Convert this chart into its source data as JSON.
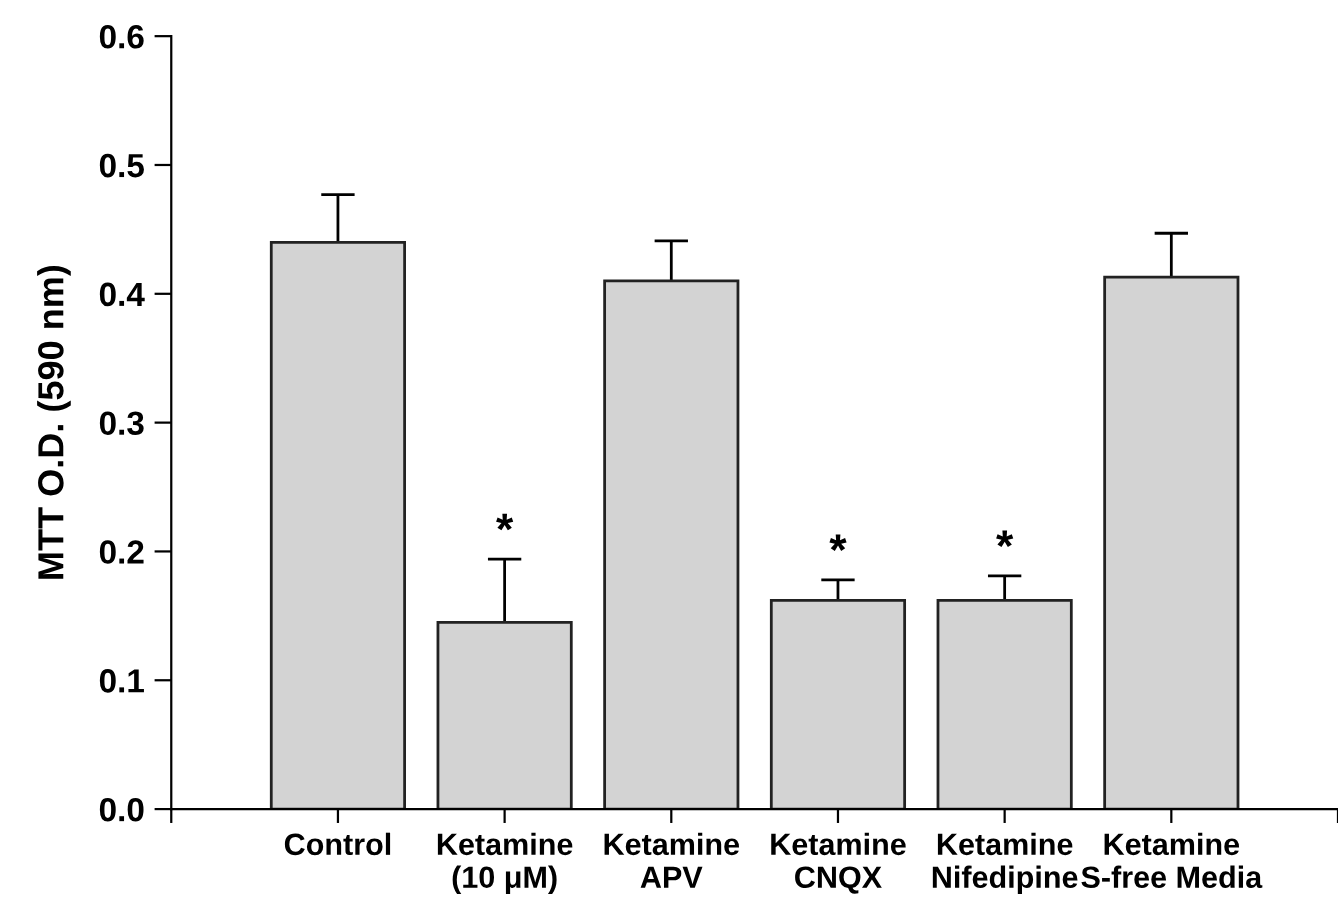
{
  "chart_data": {
    "type": "bar",
    "ylabel": "MTT O.D. (590 nm)",
    "categories": [
      "Control",
      "Ketamine\n(10 μM)",
      "Ketamine\nAPV",
      "Ketamine\nCNQX",
      "Ketamine\nNifedipine",
      "Ketamine\nS-free Media"
    ],
    "values": [
      0.44,
      0.145,
      0.41,
      0.162,
      0.162,
      0.413
    ],
    "errors": [
      [
        0.44,
        0.477
      ],
      [
        0.145,
        0.194
      ],
      [
        0.41,
        0.441
      ],
      [
        0.162,
        0.178
      ],
      [
        0.162,
        0.181
      ],
      [
        0.413,
        0.447
      ]
    ],
    "color": "#d3d3d3",
    "ylim": [
      0,
      0.6
    ],
    "yticks": [
      {
        "value": 0,
        "label": "0.0"
      },
      0.1,
      0.2,
      0.3,
      0.4,
      0.5,
      0.6
    ],
    "grid": false,
    "legend": false,
    "annotations": [
      {
        "text": "*",
        "x": "Ketamine\n(10 μM)",
        "y": 0.194
      },
      {
        "text": "*",
        "x": "Ketamine\nCNQX",
        "y": 0.178
      },
      {
        "text": "*",
        "x": "Ketamine\nNifedipine",
        "y": 0.181
      }
    ]
  }
}
